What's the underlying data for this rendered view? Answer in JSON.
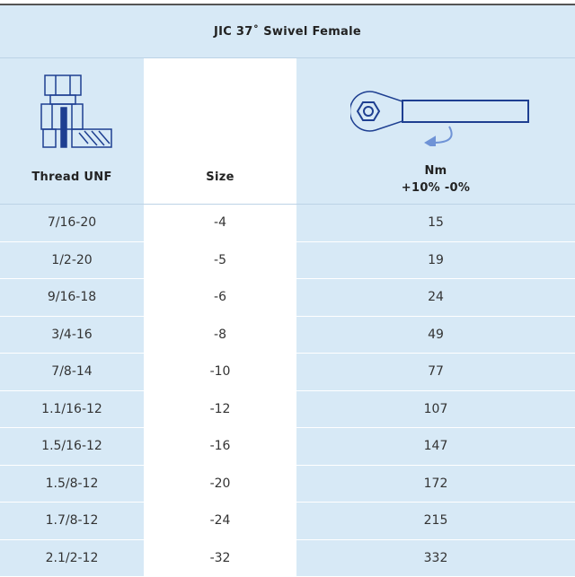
{
  "table": {
    "title": "JIC 37˚ Swivel Female",
    "headers": [
      "Thread UNF",
      "Size",
      "Nm",
      "+10% -0%"
    ],
    "rows": [
      [
        "7/16-20",
        "-4",
        "15"
      ],
      [
        "1/2-20",
        "-5",
        "19"
      ],
      [
        "9/16-18",
        "-6",
        "24"
      ],
      [
        "3/4-16",
        "-8",
        "49"
      ],
      [
        "7/8-14",
        "-10",
        "77"
      ],
      [
        "1.1/16-12",
        "-12",
        "107"
      ],
      [
        "1.5/16-12",
        "-16",
        "147"
      ],
      [
        "1.5/8-12",
        "-20",
        "172"
      ],
      [
        "1.7/8-12",
        "-24",
        "215"
      ],
      [
        "2.1/2-12",
        "-32",
        "332"
      ]
    ]
  }
}
